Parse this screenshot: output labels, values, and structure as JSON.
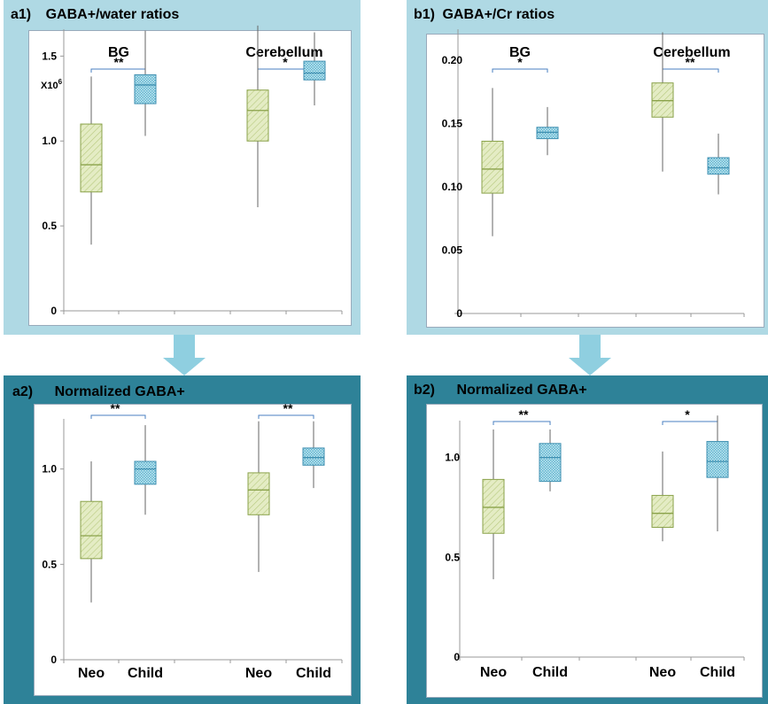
{
  "colors": {
    "panel_light": "#afd9e4",
    "panel_dark": "#2e8298",
    "neo_fill": "#e4ecc4",
    "neo_stroke": "#8aa24a",
    "child_fill": "#9fd6e4",
    "child_stroke": "#3f8fb0",
    "sig_line": "#4a7fc0",
    "arrow": "#8fcfe0"
  },
  "chart_data": [
    {
      "id": "a1",
      "type": "boxplot",
      "label": "a1)",
      "title": "GABA+/water  ratios",
      "axis_multiplier": "X10",
      "axis_multiplier_exp": "6",
      "ylim": [
        0,
        1.7
      ],
      "yticks": [
        0,
        0.5,
        1.0,
        1.5
      ],
      "ytick_labels": [
        "0",
        "0.5",
        "1.0",
        "1.5"
      ],
      "groups": [
        {
          "name": "BG",
          "significance": "**"
        },
        {
          "name": "Cerebellum",
          "significance": "*"
        }
      ],
      "x_labels": [],
      "boxes": [
        {
          "group": "BG",
          "series": "Neo",
          "min": 0.39,
          "q1": 0.7,
          "median": 0.86,
          "q3": 1.1,
          "max": 1.38
        },
        {
          "group": "BG",
          "series": "Child",
          "min": 1.03,
          "q1": 1.22,
          "median": 1.33,
          "q3": 1.39,
          "max": 1.65
        },
        {
          "group": "Cerebellum",
          "series": "Neo",
          "min": 0.61,
          "q1": 1.0,
          "median": 1.18,
          "q3": 1.3,
          "max": 1.68
        },
        {
          "group": "Cerebellum",
          "series": "Child",
          "min": 1.21,
          "q1": 1.36,
          "median": 1.4,
          "q3": 1.47,
          "max": 1.64
        }
      ]
    },
    {
      "id": "b1",
      "type": "boxplot",
      "label": "b1)",
      "title": "GABA+/Cr  ratios",
      "ylim": [
        0,
        0.23
      ],
      "yticks": [
        0,
        0.05,
        0.1,
        0.15,
        0.2
      ],
      "ytick_labels": [
        "0",
        "0.05",
        "0.10",
        "0.15",
        "0.20"
      ],
      "groups": [
        {
          "name": "BG",
          "significance": "*"
        },
        {
          "name": "Cerebellum",
          "significance": "**"
        }
      ],
      "x_labels": [],
      "boxes": [
        {
          "group": "BG",
          "series": "Neo",
          "min": 0.061,
          "q1": 0.095,
          "median": 0.114,
          "q3": 0.136,
          "max": 0.178
        },
        {
          "group": "BG",
          "series": "Child",
          "min": 0.125,
          "q1": 0.138,
          "median": 0.143,
          "q3": 0.147,
          "max": 0.163
        },
        {
          "group": "Cerebellum",
          "series": "Neo",
          "min": 0.112,
          "q1": 0.155,
          "median": 0.168,
          "q3": 0.182,
          "max": 0.222
        },
        {
          "group": "Cerebellum",
          "series": "Child",
          "min": 0.094,
          "q1": 0.11,
          "median": 0.115,
          "q3": 0.123,
          "max": 0.142
        }
      ]
    },
    {
      "id": "a2",
      "type": "boxplot",
      "label": "a2)",
      "title": "Normalized GABA+",
      "ylim": [
        0,
        1.3
      ],
      "yticks": [
        0,
        0.5,
        1.0
      ],
      "ytick_labels": [
        "0",
        "0.5",
        "1.0"
      ],
      "groups": [
        {
          "name": "BG",
          "significance": "**"
        },
        {
          "name": "Cerebellum",
          "significance": "**"
        }
      ],
      "x_labels": [
        "Neo",
        "Child",
        "Neo",
        "Child"
      ],
      "boxes": [
        {
          "group": "BG",
          "series": "Neo",
          "min": 0.3,
          "q1": 0.53,
          "median": 0.65,
          "q3": 0.83,
          "max": 1.04
        },
        {
          "group": "BG",
          "series": "Child",
          "min": 0.76,
          "q1": 0.92,
          "median": 1.0,
          "q3": 1.04,
          "max": 1.23
        },
        {
          "group": "Cerebellum",
          "series": "Neo",
          "min": 0.46,
          "q1": 0.76,
          "median": 0.89,
          "q3": 0.98,
          "max": 1.25
        },
        {
          "group": "Cerebellum",
          "series": "Child",
          "min": 0.9,
          "q1": 1.02,
          "median": 1.06,
          "q3": 1.11,
          "max": 1.25
        }
      ]
    },
    {
      "id": "b2",
      "type": "boxplot",
      "label": "b2)",
      "title": "Normalized GABA+",
      "ylim": [
        0,
        1.22
      ],
      "yticks": [
        0,
        0.5,
        1.0
      ],
      "ytick_labels": [
        "0",
        "0.5",
        "1.0"
      ],
      "groups": [
        {
          "name": "BG",
          "significance": "**"
        },
        {
          "name": "Cerebellum",
          "significance": "*"
        }
      ],
      "x_labels": [
        "Neo",
        "Child",
        "Neo",
        "Child"
      ],
      "boxes": [
        {
          "group": "BG",
          "series": "Neo",
          "min": 0.39,
          "q1": 0.62,
          "median": 0.75,
          "q3": 0.89,
          "max": 1.14
        },
        {
          "group": "BG",
          "series": "Child",
          "min": 0.83,
          "q1": 0.88,
          "median": 1.0,
          "q3": 1.07,
          "max": 1.14
        },
        {
          "group": "Cerebellum",
          "series": "Neo",
          "min": 0.58,
          "q1": 0.65,
          "median": 0.72,
          "q3": 0.81,
          "max": 1.03
        },
        {
          "group": "Cerebellum",
          "series": "Child",
          "min": 0.63,
          "q1": 0.9,
          "median": 0.98,
          "q3": 1.08,
          "max": 1.21
        }
      ]
    }
  ]
}
